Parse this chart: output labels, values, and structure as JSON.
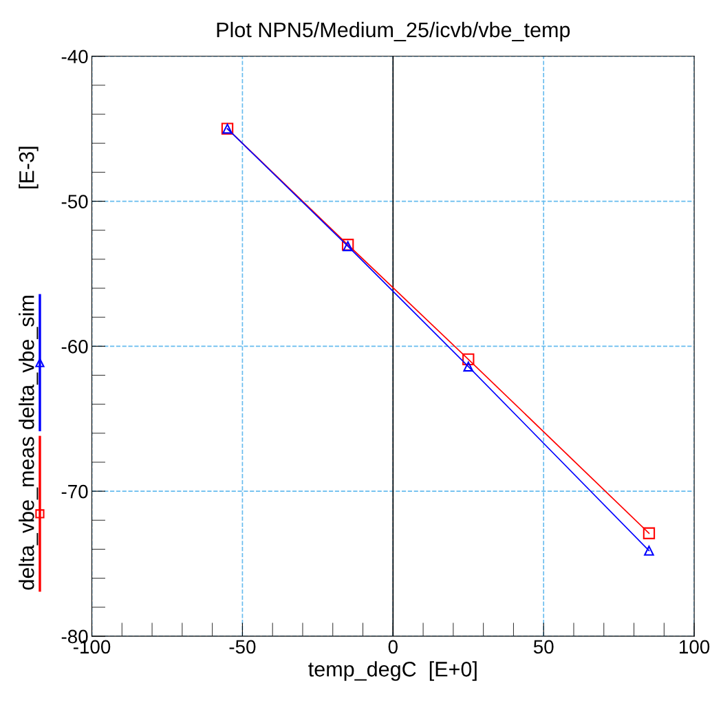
{
  "chart_data": {
    "type": "line",
    "title": "Plot NPN5/Medium_25/icvb/vbe_temp",
    "xlabel": "temp_degC  [E+0]",
    "ylabel": "[E-3]",
    "x": [
      -55,
      -15,
      25,
      85
    ],
    "series": [
      {
        "name": "delta_vbe_meas",
        "color": "#ff0000",
        "marker": "square",
        "values": [
          -45.0,
          -53.0,
          -60.9,
          -72.9
        ]
      },
      {
        "name": "delta_vbe_sim",
        "color": "#0000ff",
        "marker": "triangle",
        "values": [
          -45.0,
          -53.1,
          -61.4,
          -74.1
        ]
      }
    ],
    "xlim": [
      -100,
      100
    ],
    "ylim": [
      -80,
      -40
    ],
    "xticks": [
      -100,
      -50,
      0,
      50,
      100
    ],
    "yticks": [
      -80,
      -70,
      -60,
      -50,
      -40
    ],
    "ref_lines": [
      {
        "axis": "x",
        "value": 0,
        "color": "#000000",
        "line_style": "solid"
      }
    ],
    "grid": true,
    "legend": "left",
    "line_style": "solid"
  }
}
